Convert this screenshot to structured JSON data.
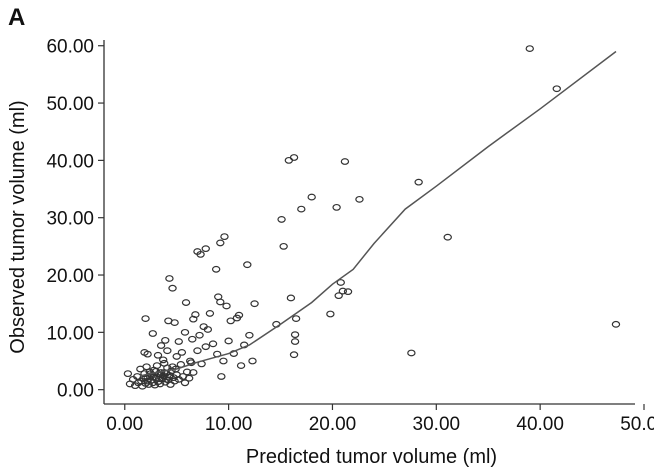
{
  "panel_label": "A",
  "chart_data": {
    "type": "scatter",
    "title": "",
    "xlabel": "Predicted tumor volume (ml)",
    "ylabel": "Observed tumor volume (ml)",
    "xlim": [
      -2,
      50
    ],
    "ylim": [
      -2.5,
      61
    ],
    "xticks": [
      0,
      10,
      20,
      30,
      40,
      50
    ],
    "xtick_labels": [
      "0.00",
      "10.00",
      "20.00",
      "30.00",
      "40.00",
      "50.00"
    ],
    "yticks": [
      0,
      10,
      20,
      30,
      40,
      50,
      60
    ],
    "ytick_labels": [
      "0.00",
      "10.00",
      "20.00",
      "30.00",
      "40.00",
      "50.00",
      "60.00"
    ],
    "grid": false,
    "legend": "none",
    "series": [
      {
        "type": "scatter",
        "marker": "open-circle",
        "points": [
          [
            0.3,
            2.8
          ],
          [
            0.5,
            1.0
          ],
          [
            0.8,
            1.8
          ],
          [
            1.0,
            0.7
          ],
          [
            1.2,
            2.3
          ],
          [
            1.3,
            1.2
          ],
          [
            1.5,
            3.6
          ],
          [
            1.6,
            1.5
          ],
          [
            1.7,
            0.6
          ],
          [
            1.8,
            2.0
          ],
          [
            1.9,
            2.8
          ],
          [
            2.0,
            1.1
          ],
          [
            2.1,
            4.0
          ],
          [
            2.2,
            2.2
          ],
          [
            2.3,
            0.9
          ],
          [
            2.4,
            3.1
          ],
          [
            2.5,
            1.6
          ],
          [
            2.6,
            2.5
          ],
          [
            2.7,
            1.2
          ],
          [
            2.8,
            3.4
          ],
          [
            2.9,
            0.8
          ],
          [
            3.0,
            2.0
          ],
          [
            3.1,
            4.2
          ],
          [
            3.2,
            1.4
          ],
          [
            3.3,
            2.7
          ],
          [
            3.4,
            1.0
          ],
          [
            3.5,
            3.0
          ],
          [
            3.6,
            1.9
          ],
          [
            3.7,
            2.4
          ],
          [
            3.8,
            4.6
          ],
          [
            3.9,
            1.3
          ],
          [
            4.0,
            2.9
          ],
          [
            4.1,
            3.8
          ],
          [
            4.2,
            1.7
          ],
          [
            4.3,
            2.2
          ],
          [
            4.4,
            0.9
          ],
          [
            4.5,
            3.3
          ],
          [
            4.6,
            4.0
          ],
          [
            4.7,
            2.1
          ],
          [
            4.8,
            1.5
          ],
          [
            4.9,
            3.6
          ],
          [
            5.0,
            2.6
          ],
          [
            5.2,
            1.8
          ],
          [
            5.4,
            4.4
          ],
          [
            5.6,
            2.3
          ],
          [
            5.8,
            1.2
          ],
          [
            6.0,
            3.1
          ],
          [
            6.2,
            2.0
          ],
          [
            6.4,
            4.7
          ],
          [
            6.6,
            3.0
          ],
          [
            2.0,
            2.0
          ],
          [
            2.5,
            2.8
          ],
          [
            3.0,
            3.2
          ],
          [
            3.5,
            2.6
          ],
          [
            4.0,
            1.8
          ],
          [
            2.2,
            1.5
          ],
          [
            2.8,
            2.2
          ],
          [
            3.3,
            1.9
          ],
          [
            3.8,
            3.0
          ],
          [
            4.3,
            2.5
          ],
          [
            1.9,
            6.5
          ],
          [
            2.2,
            6.2
          ],
          [
            2.0,
            12.4
          ],
          [
            2.7,
            9.8
          ],
          [
            3.2,
            6.0
          ],
          [
            3.5,
            7.7
          ],
          [
            3.7,
            5.2
          ],
          [
            3.9,
            8.6
          ],
          [
            4.1,
            6.8
          ],
          [
            4.2,
            12.0
          ],
          [
            4.3,
            19.4
          ],
          [
            4.6,
            17.7
          ],
          [
            4.8,
            11.7
          ],
          [
            5.0,
            5.8
          ],
          [
            5.2,
            8.4
          ],
          [
            5.5,
            6.5
          ],
          [
            5.8,
            10.0
          ],
          [
            5.9,
            15.2
          ],
          [
            6.3,
            5.0
          ],
          [
            6.5,
            8.8
          ],
          [
            6.6,
            12.3
          ],
          [
            6.8,
            13.1
          ],
          [
            7.0,
            6.8
          ],
          [
            7.2,
            9.5
          ],
          [
            7.4,
            4.5
          ],
          [
            7.6,
            11.0
          ],
          [
            7.8,
            7.5
          ],
          [
            8.0,
            10.5
          ],
          [
            8.2,
            13.3
          ],
          [
            8.5,
            8.0
          ],
          [
            8.8,
            21.0
          ],
          [
            8.9,
            6.2
          ],
          [
            9.0,
            16.2
          ],
          [
            9.2,
            15.3
          ],
          [
            9.3,
            2.3
          ],
          [
            9.5,
            5.0
          ],
          [
            9.8,
            14.6
          ],
          [
            10.0,
            8.5
          ],
          [
            10.2,
            12.0
          ],
          [
            10.5,
            6.3
          ],
          [
            10.8,
            12.5
          ],
          [
            11.0,
            13.0
          ],
          [
            11.2,
            4.2
          ],
          [
            11.5,
            7.8
          ],
          [
            12.0,
            9.5
          ],
          [
            12.3,
            5.0
          ],
          [
            12.5,
            15.0
          ],
          [
            7.0,
            24.1
          ],
          [
            7.3,
            23.6
          ],
          [
            7.8,
            24.6
          ],
          [
            9.2,
            25.6
          ],
          [
            9.6,
            26.7
          ],
          [
            11.8,
            21.8
          ],
          [
            14.6,
            11.4
          ],
          [
            15.1,
            29.7
          ],
          [
            15.3,
            25.0
          ],
          [
            15.8,
            40.0
          ],
          [
            16.3,
            40.5
          ],
          [
            17.0,
            31.5
          ],
          [
            16.0,
            16.0
          ],
          [
            16.5,
            12.4
          ],
          [
            16.4,
            9.6
          ],
          [
            16.4,
            8.4
          ],
          [
            16.3,
            6.1
          ],
          [
            18.0,
            33.6
          ],
          [
            19.8,
            13.2
          ],
          [
            20.4,
            31.8
          ],
          [
            20.6,
            16.4
          ],
          [
            20.8,
            18.7
          ],
          [
            21.0,
            17.2
          ],
          [
            21.2,
            39.8
          ],
          [
            21.5,
            17.1
          ],
          [
            22.6,
            33.2
          ],
          [
            27.6,
            6.4
          ],
          [
            28.3,
            36.2
          ],
          [
            31.1,
            26.6
          ],
          [
            39.0,
            59.5
          ],
          [
            41.6,
            52.5
          ],
          [
            47.3,
            11.4
          ]
        ]
      },
      {
        "type": "line",
        "name": "",
        "x": [
          1.5,
          3,
          5,
          7,
          10,
          12,
          15,
          18,
          20,
          22,
          24,
          27,
          30,
          35,
          40,
          47.3
        ],
        "y": [
          2.4,
          3.0,
          3.6,
          4.8,
          6.3,
          7.8,
          11.4,
          15.2,
          18.4,
          21.0,
          25.5,
          31.5,
          35.5,
          42.4,
          49.0,
          59.0
        ]
      }
    ]
  }
}
